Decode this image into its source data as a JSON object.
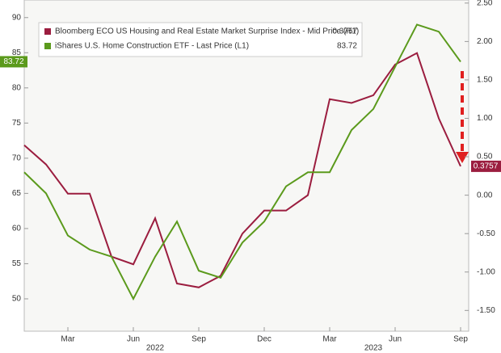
{
  "chart_data": {
    "type": "line",
    "legend": [
      "Bloomberg ECO US Housing and Real Estate Market Surprise Index - Mid Price (R1)",
      "iShares U.S. Home Construction ETF - Last Price (L1)"
    ],
    "x": [
      "2022-01",
      "2022-02",
      "2022-03",
      "2022-04",
      "2022-05",
      "2022-06",
      "2022-07",
      "2022-08",
      "2022-09",
      "2022-10",
      "2022-11",
      "2022-12",
      "2023-01",
      "2023-02",
      "2023-03",
      "2023-04",
      "2023-05",
      "2023-06",
      "2023-07",
      "2023-08",
      "2023-09"
    ],
    "xlim": [
      "2022-01",
      "2023-09"
    ],
    "xticks": [
      {
        "value": "2022-03",
        "label": "Mar"
      },
      {
        "value": "2022-06",
        "label": "Jun"
      },
      {
        "value": "2022-09",
        "label": "Sep"
      },
      {
        "value": "2022-12",
        "label": "Dec"
      },
      {
        "value": "2023-03",
        "label": "Mar"
      },
      {
        "value": "2023-06",
        "label": "Jun"
      },
      {
        "value": "2023-09",
        "label": "Sep"
      }
    ],
    "year_labels": [
      {
        "value": "2022-07",
        "label": "2022"
      },
      {
        "value": "2023-05",
        "label": "2023"
      }
    ],
    "series": [
      {
        "name": "Bloomberg ECO US Housing and Real Estate Market Surprise Index - Mid Price (R1)",
        "color": "#9b1d3f",
        "axis": "y2",
        "values": [
          0.65,
          0.4,
          0.02,
          0.02,
          -0.8,
          -0.9,
          -0.3,
          -1.15,
          -1.2,
          -1.05,
          -0.5,
          -0.2,
          -0.2,
          0.0,
          1.25,
          1.2,
          1.3,
          1.7,
          1.85,
          1.0,
          0.3757
        ]
      },
      {
        "name": "iShares U.S. Home Construction ETF - Last Price (L1)",
        "color": "#5b9a1c",
        "axis": "y",
        "values": [
          68,
          65,
          59,
          57,
          56,
          50,
          56,
          61,
          54,
          53,
          58,
          61,
          66,
          68,
          68,
          74,
          77,
          83,
          89,
          88,
          83.72
        ]
      }
    ],
    "ylim": [
      45.4,
      92.5
    ],
    "yticks": [
      50,
      55,
      60,
      65,
      70,
      75,
      80,
      85,
      90
    ],
    "y2lim": [
      -1.77,
      2.54
    ],
    "y2ticks": [
      {
        "value": -1.5,
        "label": "-1.50"
      },
      {
        "value": -1,
        "label": "-1.00"
      },
      {
        "value": -0.5,
        "label": "-0.50"
      },
      {
        "value": 0,
        "label": "0.00"
      },
      {
        "value": 0.5,
        "label": "0.50"
      },
      {
        "value": 1,
        "label": "1.00"
      },
      {
        "value": 1.5,
        "label": "1.50"
      },
      {
        "value": 2,
        "label": "2.00"
      },
      {
        "value": 2.5,
        "label": "2.50"
      }
    ],
    "grid": false
  }
}
